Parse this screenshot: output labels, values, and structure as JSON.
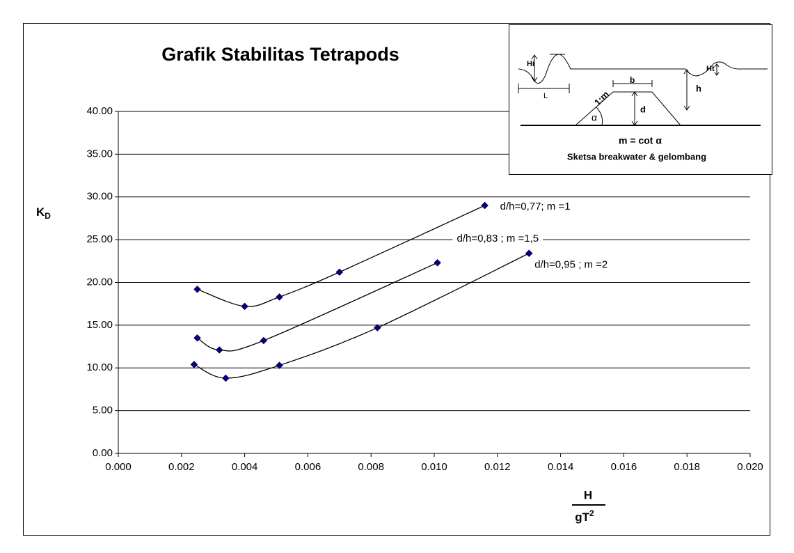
{
  "chart_data": {
    "type": "line",
    "title": "Grafik Stabilitas Tetrapods",
    "y_label": "K",
    "y_label_subscript": "D",
    "x_label": {
      "numerator": "H",
      "denominator": "gT",
      "superscript": "2"
    },
    "smooth": true,
    "grid": true,
    "xlim": [
      0,
      0.02
    ],
    "ylim": [
      0,
      40
    ],
    "xticks": [
      {
        "value": 0,
        "label": "0.000"
      },
      {
        "value": 0.002,
        "label": "0.002"
      },
      {
        "value": 0.004,
        "label": "0.004"
      },
      {
        "value": 0.006,
        "label": "0.006"
      },
      {
        "value": 0.008,
        "label": "0.008"
      },
      {
        "value": 0.01,
        "label": "0.010"
      },
      {
        "value": 0.012,
        "label": "0.012"
      },
      {
        "value": 0.014,
        "label": "0.014"
      },
      {
        "value": 0.016,
        "label": "0.016"
      },
      {
        "value": 0.018,
        "label": "0.018"
      },
      {
        "value": 0.02,
        "label": "0.020"
      }
    ],
    "yticks": [
      {
        "value": 0,
        "label": "0.00"
      },
      {
        "value": 5,
        "label": "5.00"
      },
      {
        "value": 10,
        "label": "10.00"
      },
      {
        "value": 15,
        "label": "15.00"
      },
      {
        "value": 20,
        "label": "20.00"
      },
      {
        "value": 25,
        "label": "25.00"
      },
      {
        "value": 30,
        "label": "30.00"
      },
      {
        "value": 35,
        "label": "35.00"
      },
      {
        "value": 40,
        "label": "40.00"
      }
    ],
    "series": [
      {
        "name": "d/h=0,77; m =1",
        "color": "#000080",
        "x": [
          0.0025,
          0.004,
          0.0051,
          0.007,
          0.0116
        ],
        "values": [
          19.2,
          17.2,
          18.3,
          21.2,
          29.0
        ]
      },
      {
        "name": "d/h=0,83 ; m =1,5",
        "color": "#000080",
        "x": [
          0.0025,
          0.0032,
          0.0046,
          0.0101
        ],
        "values": [
          13.5,
          12.1,
          13.2,
          22.3
        ]
      },
      {
        "name": "d/h=0,95 ; m =2",
        "color": "#000080",
        "x": [
          0.0024,
          0.0034,
          0.0051,
          0.0082,
          0.013
        ],
        "values": [
          10.4,
          8.8,
          10.3,
          14.7,
          23.4
        ]
      }
    ],
    "inset": {
      "hi": "Hi",
      "l": "L",
      "ht": "Ht",
      "slope": "1:m",
      "b": "b",
      "h": "h",
      "d": "d",
      "alpha": "α",
      "formula": "m = cot α",
      "caption": "Sketsa breakwater & gelombang"
    }
  }
}
